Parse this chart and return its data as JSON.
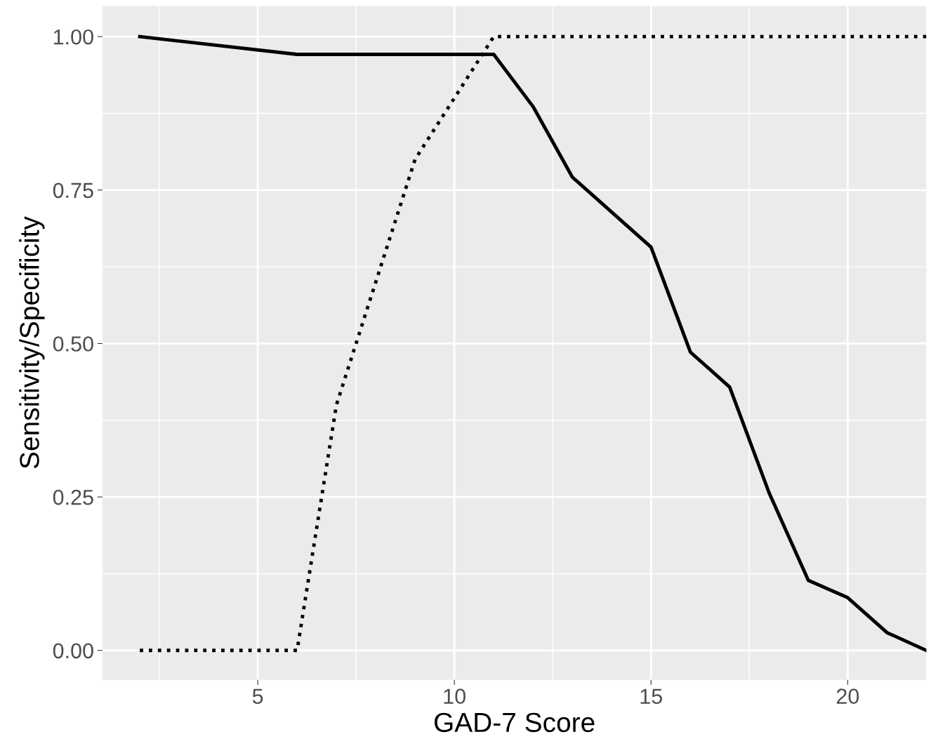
{
  "chart_data": {
    "type": "line",
    "xlabel": "GAD-7 Score",
    "ylabel": "Sensitivity/Specificity",
    "xlim": [
      1.05,
      22.0
    ],
    "ylim": [
      -0.048,
      1.05
    ],
    "xticks": [
      5,
      10,
      15,
      20
    ],
    "yticks": [
      {
        "value": 0,
        "label": "0.00"
      },
      {
        "value": 0.25,
        "label": "0.25"
      },
      {
        "value": 0.5,
        "label": "0.50"
      },
      {
        "value": 0.75,
        "label": "0.75"
      },
      {
        "value": 1.0,
        "label": "1.00"
      }
    ],
    "grid": true,
    "series": [
      {
        "color": "#000000",
        "line_style": "solid",
        "x": [
          2,
          6,
          11,
          12,
          13,
          15,
          16,
          17,
          18,
          19,
          20,
          21,
          22
        ],
        "values": [
          1.0,
          0.971,
          0.971,
          0.886,
          0.771,
          0.657,
          0.486,
          0.429,
          0.257,
          0.114,
          0.086,
          0.029,
          0.0
        ]
      },
      {
        "color": "#000000",
        "line_style": "dotted",
        "x": [
          2,
          6,
          7,
          9,
          11,
          22
        ],
        "values": [
          0.0,
          0.0,
          0.4,
          0.8,
          1.0,
          1.0
        ]
      }
    ]
  }
}
